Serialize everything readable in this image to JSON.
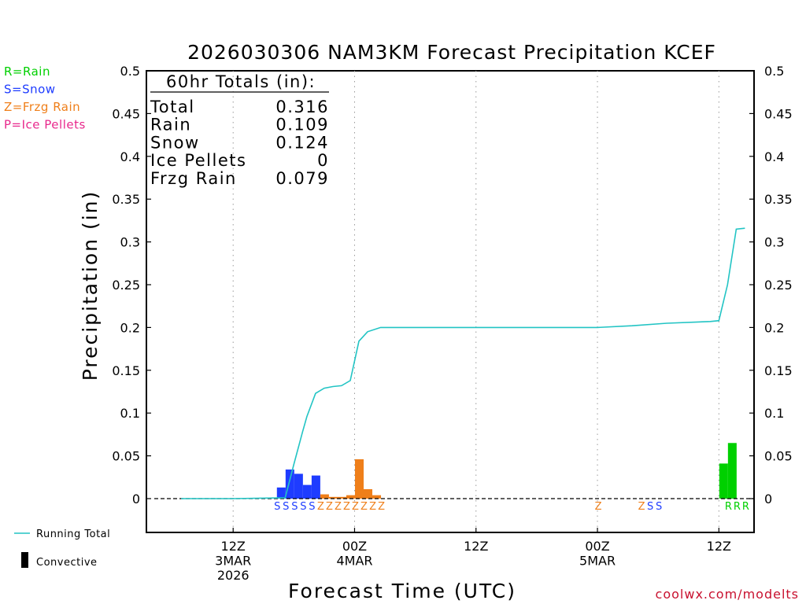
{
  "chart_data": {
    "type": "bar+line",
    "title": "2026030306 NAM3KM Forecast Precipitation KCEF",
    "xlabel": "Forecast Time (UTC)",
    "ylabel": "Precipitation (in)",
    "ylim": [
      -0.04,
      0.5
    ],
    "xlim_hours": [
      -4,
      66
    ],
    "y_ticks": [
      0,
      0.05,
      0.1,
      0.15,
      0.2,
      0.25,
      0.3,
      0.35,
      0.4,
      0.45,
      0.5
    ],
    "y_tick_labels": [
      "0",
      "0.05",
      "0.1",
      "0.15",
      "0.2",
      "0.25",
      "0.3",
      "0.35",
      "0.4",
      "0.45",
      "0.5"
    ],
    "x_ticks": [
      {
        "hour": 6,
        "lines": [
          "12Z",
          "3MAR",
          "2026"
        ]
      },
      {
        "hour": 20,
        "lines": [
          "00Z",
          "4MAR"
        ]
      },
      {
        "hour": 34,
        "lines": [
          "12Z"
        ]
      },
      {
        "hour": 48,
        "lines": [
          "00Z",
          "5MAR"
        ]
      },
      {
        "hour": 62,
        "lines": [
          "12Z"
        ]
      }
    ],
    "colors": {
      "rain": "#00d000",
      "snow": "#1e3cff",
      "frzg": "#ef7f1a",
      "ice": "#e8288c",
      "running": "#22c4c4",
      "convective": "#000000"
    },
    "type_legend": [
      {
        "label": "R=Rain",
        "color": "#00d000"
      },
      {
        "label": "S=Snow",
        "color": "#1e3cff"
      },
      {
        "label": "Z=Frzg Rain",
        "color": "#ef7f1a"
      },
      {
        "label": "P=Ice Pellets",
        "color": "#e8288c"
      }
    ],
    "series_legend": {
      "running": "Running Total",
      "convective": "Convective"
    },
    "totals": {
      "header": "60hr Totals (in):",
      "rows": [
        {
          "label": "Total",
          "value": "0.316"
        },
        {
          "label": "Rain",
          "value": "0.109"
        },
        {
          "label": "Snow",
          "value": "0.124"
        },
        {
          "label": "Ice Pellets",
          "value": "0"
        },
        {
          "label": "Frzg Rain",
          "value": "0.079"
        }
      ]
    },
    "bars": [
      {
        "hour": 11,
        "value": 0.013,
        "type": "snow"
      },
      {
        "hour": 12,
        "value": 0.034,
        "type": "snow"
      },
      {
        "hour": 13,
        "value": 0.029,
        "type": "snow"
      },
      {
        "hour": 14,
        "value": 0.016,
        "type": "snow"
      },
      {
        "hour": 15,
        "value": 0.027,
        "type": "snow"
      },
      {
        "hour": 16,
        "value": 0.005,
        "type": "frzg"
      },
      {
        "hour": 17,
        "value": 0.002,
        "type": "frzg"
      },
      {
        "hour": 18,
        "value": 0.002,
        "type": "frzg"
      },
      {
        "hour": 19,
        "value": 0.004,
        "type": "frzg"
      },
      {
        "hour": 20,
        "value": 0.046,
        "type": "frzg"
      },
      {
        "hour": 21,
        "value": 0.011,
        "type": "frzg"
      },
      {
        "hour": 22,
        "value": 0.004,
        "type": "frzg"
      },
      {
        "hour": 62,
        "value": 0.041,
        "type": "rain"
      },
      {
        "hour": 63,
        "value": 0.065,
        "type": "rain"
      }
    ],
    "type_markers": [
      {
        "hour": 11,
        "label": "S",
        "type": "snow"
      },
      {
        "hour": 12,
        "label": "S",
        "type": "snow"
      },
      {
        "hour": 13,
        "label": "S",
        "type": "snow"
      },
      {
        "hour": 14,
        "label": "S",
        "type": "snow"
      },
      {
        "hour": 15,
        "label": "S",
        "type": "snow"
      },
      {
        "hour": 16,
        "label": "Z",
        "type": "frzg"
      },
      {
        "hour": 17,
        "label": "Z",
        "type": "frzg"
      },
      {
        "hour": 18,
        "label": "Z",
        "type": "frzg"
      },
      {
        "hour": 19,
        "label": "Z",
        "type": "frzg"
      },
      {
        "hour": 20,
        "label": "Z",
        "type": "frzg"
      },
      {
        "hour": 21,
        "label": "Z",
        "type": "frzg"
      },
      {
        "hour": 22,
        "label": "Z",
        "type": "frzg"
      },
      {
        "hour": 23,
        "label": "Z",
        "type": "frzg"
      },
      {
        "hour": 48,
        "label": "Z",
        "type": "frzg"
      },
      {
        "hour": 53,
        "label": "Z",
        "type": "frzg"
      },
      {
        "hour": 54,
        "label": "S",
        "type": "snow"
      },
      {
        "hour": 55,
        "label": "S",
        "type": "snow"
      },
      {
        "hour": 63,
        "label": "R",
        "type": "rain"
      },
      {
        "hour": 64,
        "label": "R",
        "type": "rain"
      },
      {
        "hour": 65,
        "label": "R",
        "type": "rain"
      }
    ],
    "running_total": {
      "x": [
        0,
        6,
        12,
        13,
        14,
        14.5,
        15.5,
        16.5,
        17.5,
        18.5,
        19.5,
        20.5,
        21.5,
        23,
        30,
        38,
        48,
        52,
        56,
        61,
        62,
        63,
        64,
        65
      ],
      "y": [
        0,
        0,
        0.001,
        0.04,
        0.078,
        0.096,
        0.123,
        0.129,
        0.131,
        0.132,
        0.138,
        0.184,
        0.195,
        0.2,
        0.2,
        0.2,
        0.2,
        0.202,
        0.205,
        0.207,
        0.208,
        0.25,
        0.315,
        0.316
      ]
    }
  },
  "credit": "coolwx.com/modelts"
}
